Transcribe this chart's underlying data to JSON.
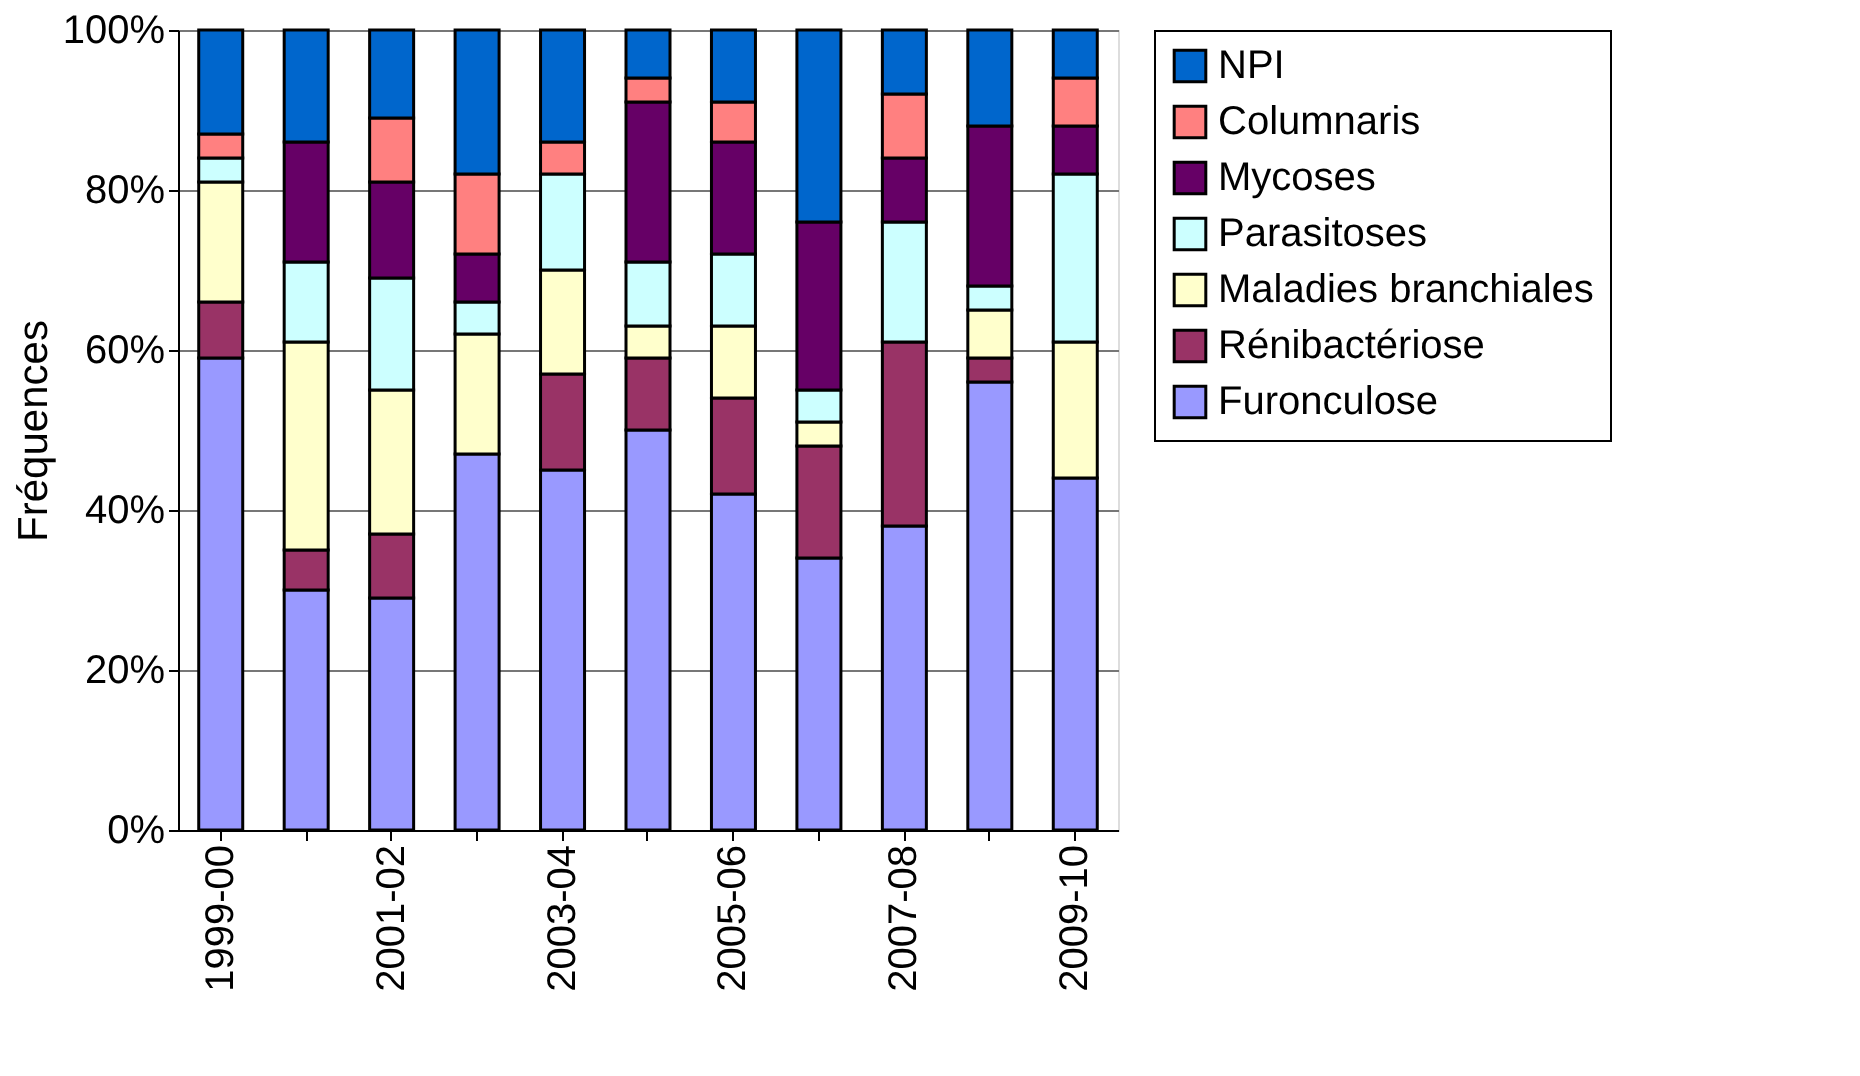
{
  "chart_data": {
    "type": "bar",
    "stacked": true,
    "ylabel": "Fréquences",
    "categories": [
      "1999-00",
      null,
      "2001-02",
      null,
      "2003-04",
      null,
      "2005-06",
      null,
      "2007-08",
      null,
      "2009-10"
    ],
    "series": [
      {
        "name": "Furonculose",
        "color": "#9999ff",
        "values": [
          59,
          30,
          29,
          47,
          45,
          50,
          42,
          34,
          38,
          56,
          44
        ]
      },
      {
        "name": "Rénibactériose",
        "color": "#993366",
        "values": [
          7,
          5,
          8,
          null,
          12,
          9,
          12,
          14,
          23,
          3,
          null
        ]
      },
      {
        "name": "Maladies branchiales",
        "color": "#ffffcc",
        "values": [
          15,
          26,
          18,
          15,
          13,
          4,
          9,
          3,
          null,
          6,
          17
        ]
      },
      {
        "name": "Parasitoses",
        "color": "#ccffff",
        "values": [
          3,
          10,
          14,
          4,
          12,
          8,
          9,
          4,
          15,
          3,
          21
        ]
      },
      {
        "name": "Mycoses",
        "color": "#660066",
        "values": [
          null,
          15,
          12,
          6,
          null,
          20,
          14,
          21,
          8,
          20,
          6
        ]
      },
      {
        "name": "Columnaris",
        "color": "#ff8080",
        "values": [
          3,
          null,
          8,
          10,
          4,
          3,
          5,
          null,
          8,
          null,
          6
        ]
      },
      {
        "name": "NPI",
        "color": "#0066cc",
        "values": [
          13,
          14,
          11,
          18,
          14,
          6,
          9,
          24,
          8,
          12,
          6
        ]
      }
    ],
    "ylim": [
      0,
      100
    ],
    "yticks": [
      {
        "value": 0,
        "label": "0%"
      },
      {
        "value": 20,
        "label": "20%"
      },
      {
        "value": 40,
        "label": "40%"
      },
      {
        "value": 60,
        "label": "60%"
      },
      {
        "value": 80,
        "label": "80%"
      },
      {
        "value": 100,
        "label": "100%"
      }
    ],
    "grid": "y",
    "legend": "right"
  }
}
